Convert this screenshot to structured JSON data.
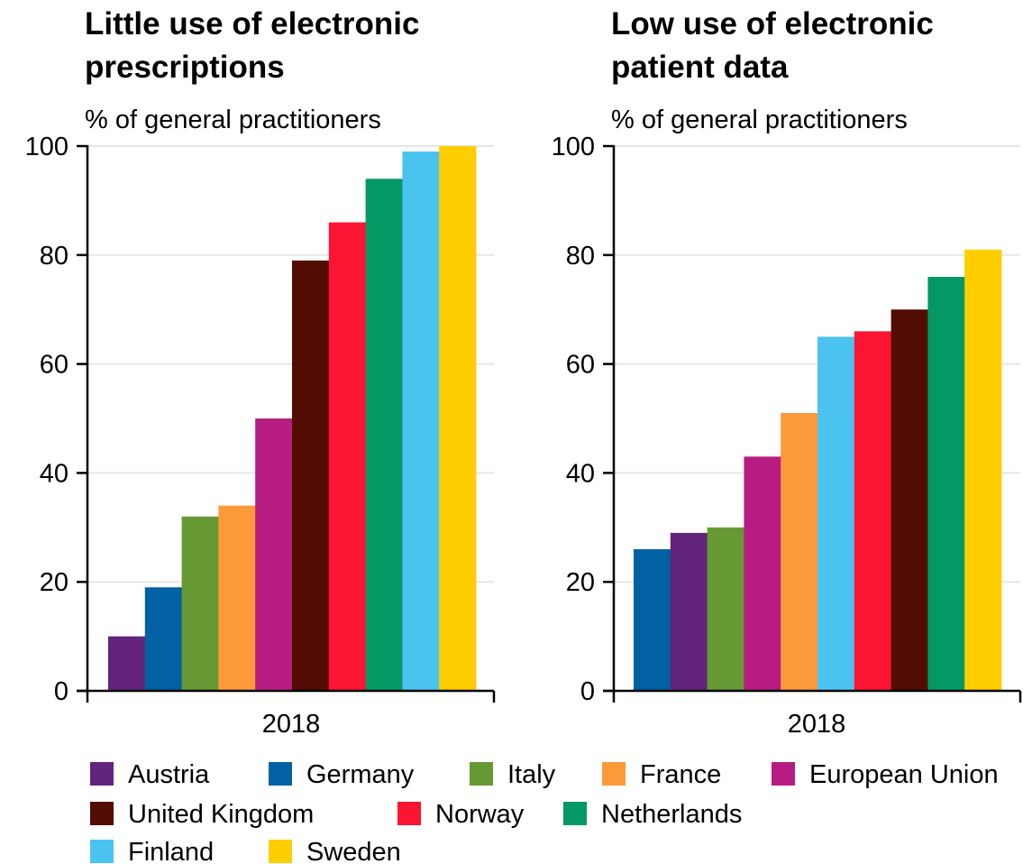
{
  "chart_data": [
    {
      "type": "bar",
      "title": "Little use of electronic prescriptions",
      "subtitle": "% of general practitioners",
      "categories": [
        "2018"
      ],
      "ylim": [
        0,
        100
      ],
      "yticks": [
        0,
        20,
        40,
        60,
        80,
        100
      ],
      "grid": true,
      "series": [
        {
          "name": "Austria",
          "value": 10
        },
        {
          "name": "Germany",
          "value": 19
        },
        {
          "name": "Italy",
          "value": 32
        },
        {
          "name": "France",
          "value": 34
        },
        {
          "name": "European Union",
          "value": 50
        },
        {
          "name": "United Kingdom",
          "value": 79
        },
        {
          "name": "Norway",
          "value": 86
        },
        {
          "name": "Netherlands",
          "value": 94
        },
        {
          "name": "Finland",
          "value": 99
        },
        {
          "name": "Sweden",
          "value": 100
        }
      ]
    },
    {
      "type": "bar",
      "title": "Low use of electronic patient data",
      "subtitle": "% of general practitioners",
      "categories": [
        "2018"
      ],
      "ylim": [
        0,
        100
      ],
      "yticks": [
        0,
        20,
        40,
        60,
        80,
        100
      ],
      "grid": true,
      "series": [
        {
          "name": "Germany",
          "value": 26
        },
        {
          "name": "Austria",
          "value": 29
        },
        {
          "name": "Italy",
          "value": 30
        },
        {
          "name": "European Union",
          "value": 43
        },
        {
          "name": "France",
          "value": 51
        },
        {
          "name": "Finland",
          "value": 65
        },
        {
          "name": "Norway",
          "value": 66
        },
        {
          "name": "United Kingdom",
          "value": 70
        },
        {
          "name": "Netherlands",
          "value": 76
        },
        {
          "name": "Sweden",
          "value": 81
        }
      ]
    }
  ],
  "legend": [
    {
      "name": "Austria",
      "color": "#62247c"
    },
    {
      "name": "Germany",
      "color": "#0161a2"
    },
    {
      "name": "Italy",
      "color": "#669933"
    },
    {
      "name": "France",
      "color": "#fc9a3a"
    },
    {
      "name": "European Union",
      "color": "#b71c83"
    },
    {
      "name": "United Kingdom",
      "color": "#520c03"
    },
    {
      "name": "Norway",
      "color": "#fb1532"
    },
    {
      "name": "Netherlands",
      "color": "#039864"
    },
    {
      "name": "Finland",
      "color": "#4bc3f1"
    },
    {
      "name": "Sweden",
      "color": "#fece00"
    }
  ]
}
